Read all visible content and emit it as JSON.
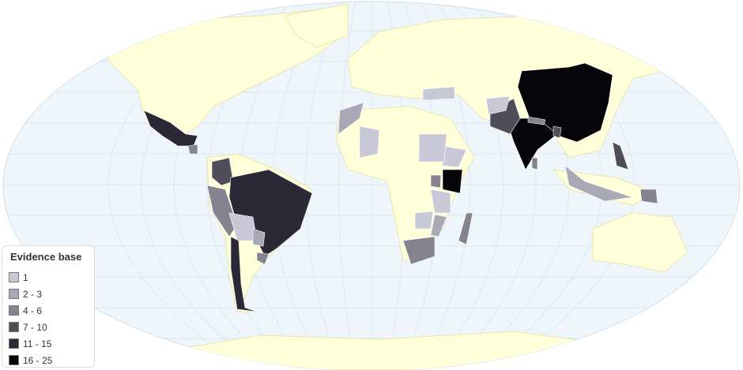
{
  "legend": {
    "title": "Evidence base",
    "items": [
      {
        "label": "1",
        "color": "#c9c8d6"
      },
      {
        "label": "2 - 3",
        "color": "#a9a8b6"
      },
      {
        "label": "4 - 6",
        "color": "#84838f"
      },
      {
        "label": "7 - 10",
        "color": "#4e4d58"
      },
      {
        "label": "11 - 15",
        "color": "#2a2935"
      },
      {
        "label": "16 - 25",
        "color": "#05050a"
      }
    ]
  },
  "colors": {
    "ocean": "#eef5fb",
    "land": "#ffffd9",
    "highlight_land": "#f3fbe8",
    "border": "#cfe0ee"
  },
  "countries": [
    {
      "name": "Mexico",
      "bin": 4
    },
    {
      "name": "Guatemala",
      "bin": 2
    },
    {
      "name": "Colombia",
      "bin": 3
    },
    {
      "name": "Peru",
      "bin": 2
    },
    {
      "name": "Brazil",
      "bin": 4
    },
    {
      "name": "Bolivia",
      "bin": 0
    },
    {
      "name": "Chile",
      "bin": 4
    },
    {
      "name": "Paraguay",
      "bin": 1
    },
    {
      "name": "Uruguay",
      "bin": 2
    },
    {
      "name": "China",
      "bin": 5
    },
    {
      "name": "India",
      "bin": 5
    },
    {
      "name": "Pakistan",
      "bin": 3
    },
    {
      "name": "Afghanistan",
      "bin": 0
    },
    {
      "name": "Philippines",
      "bin": 3
    },
    {
      "name": "Indonesia",
      "bin": 1
    },
    {
      "name": "Kenya",
      "bin": 5
    },
    {
      "name": "Ethiopia",
      "bin": 0
    },
    {
      "name": "Sudan",
      "bin": 0
    },
    {
      "name": "Tanzania",
      "bin": 0
    },
    {
      "name": "South Africa",
      "bin": 2
    },
    {
      "name": "Madagascar",
      "bin": 2
    },
    {
      "name": "Mali",
      "bin": 0
    },
    {
      "name": "Turkey",
      "bin": 0
    },
    {
      "name": "Morocco",
      "bin": 1
    },
    {
      "name": "Mozambique",
      "bin": 1
    },
    {
      "name": "Zambia",
      "bin": 0
    },
    {
      "name": "Nepal",
      "bin": 2
    },
    {
      "name": "Bangladesh",
      "bin": 3
    },
    {
      "name": "Sri Lanka",
      "bin": 2
    },
    {
      "name": "Papua New Guinea",
      "bin": 2
    },
    {
      "name": "Uganda",
      "bin": 2
    }
  ]
}
